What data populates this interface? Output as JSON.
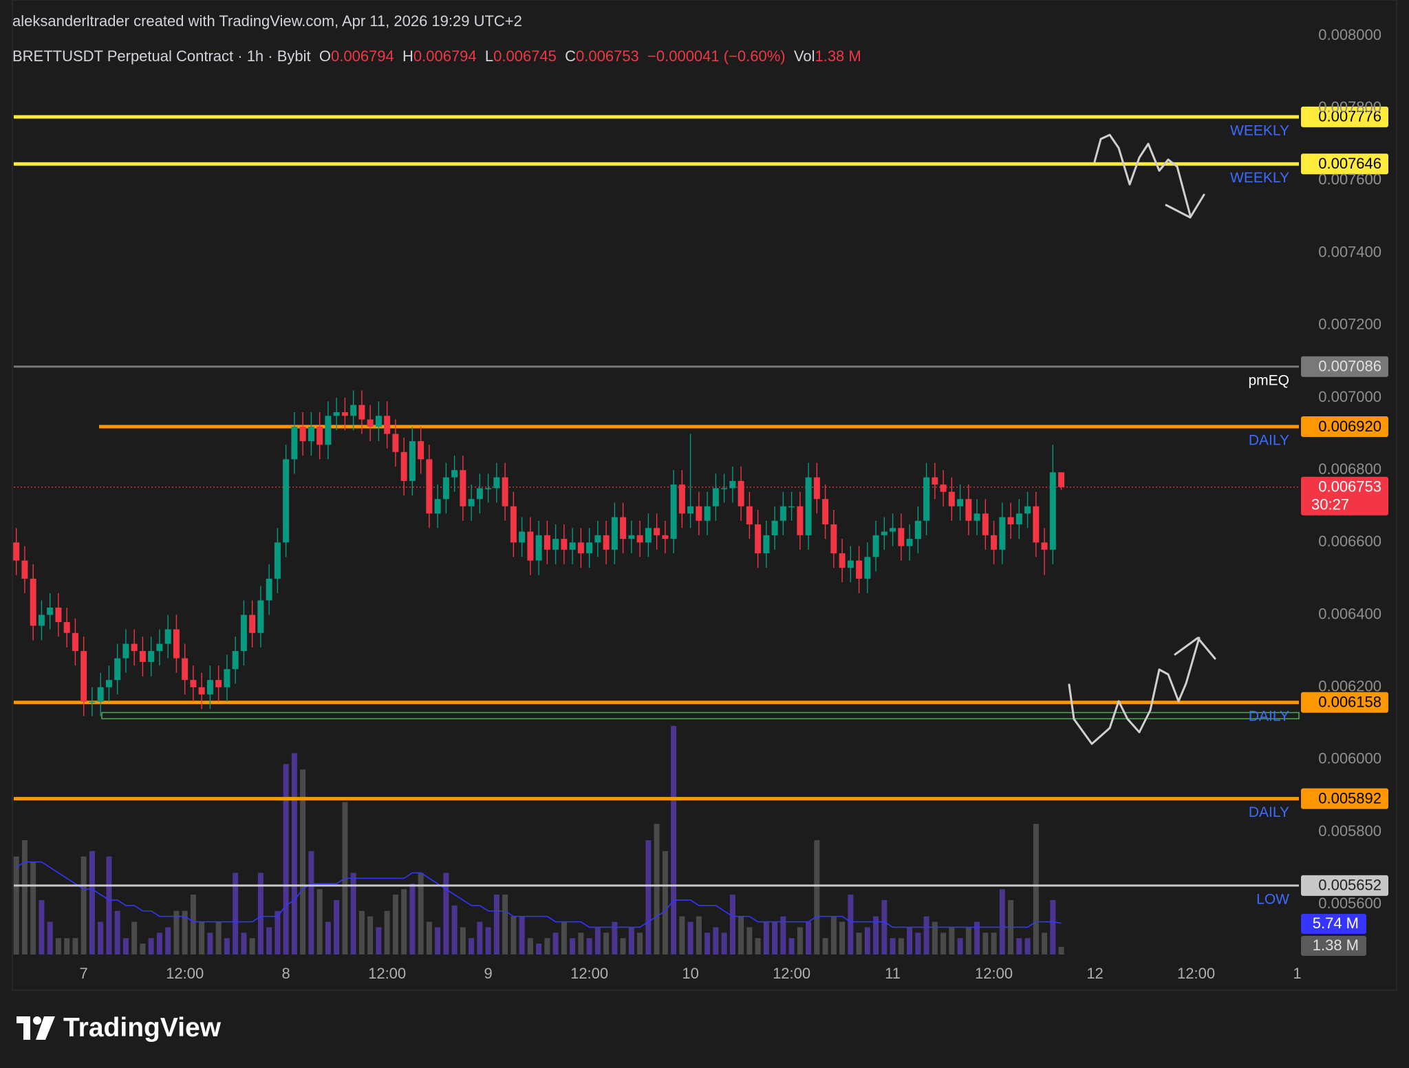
{
  "header": {
    "credit": "aleksanderltrader created with TradingView.com, Apr 11, 2026 19:29 UTC+2",
    "brand": "TradingView"
  },
  "chart_data": {
    "type": "candlestick",
    "title": "BRETTUSDT Perpetual Contract · 1h · Bybit",
    "legend_values": [
      {
        "key": "O",
        "value": "0.006794"
      },
      {
        "key": "H",
        "value": "0.006794"
      },
      {
        "key": "L",
        "value": "0.006745"
      },
      {
        "key": "C",
        "value": "0.006753"
      }
    ],
    "change": "−0.000041 (−0.60%)",
    "volume_key": "Vol",
    "volume_text": "1.38 M",
    "up_color": "#089981",
    "down_color": "#f23645",
    "volume_up_color": "#4b3590",
    "volume_down_color": "#4a4a4a",
    "volume_ma_color": "#3535ff",
    "xlim": [
      -0.3,
      152.2
    ],
    "xticks": [
      {
        "value": 8,
        "label": "7"
      },
      {
        "value": 20,
        "label": "12:00"
      },
      {
        "value": 32,
        "label": "8"
      },
      {
        "value": 44,
        "label": "12:00"
      },
      {
        "value": 56,
        "label": "9"
      },
      {
        "value": 68,
        "label": "12:00"
      },
      {
        "value": 80,
        "label": "10"
      },
      {
        "value": 92,
        "label": "12:00"
      },
      {
        "value": 104,
        "label": "11"
      },
      {
        "value": 116,
        "label": "12:00"
      },
      {
        "value": 128,
        "label": "12"
      },
      {
        "value": 140,
        "label": "12:00"
      },
      {
        "value": 152,
        "label": "1"
      }
    ],
    "ylim": [
      0.005454,
      0.008061
    ],
    "yticks": [
      {
        "value": 0.008,
        "label": "0.008000"
      },
      {
        "value": 0.0078,
        "label": "0.007800"
      },
      {
        "value": 0.0076,
        "label": "0.007600"
      },
      {
        "value": 0.0074,
        "label": "0.007400"
      },
      {
        "value": 0.0072,
        "label": "0.007200"
      },
      {
        "value": 0.007,
        "label": "0.007000"
      },
      {
        "value": 0.0068,
        "label": "0.006800"
      },
      {
        "value": 0.0066,
        "label": "0.006600"
      },
      {
        "value": 0.0064,
        "label": "0.006400"
      },
      {
        "value": 0.0062,
        "label": "0.006200"
      },
      {
        "value": 0.006,
        "label": "0.006000"
      },
      {
        "value": 0.0058,
        "label": "0.005800"
      },
      {
        "value": 0.0056,
        "label": "0.005600"
      }
    ],
    "ohlc": [
      [
        0.0066,
        0.00664,
        0.00651,
        0.00655
      ],
      [
        0.00655,
        0.00659,
        0.00646,
        0.0065
      ],
      [
        0.0065,
        0.00654,
        0.00633,
        0.00637
      ],
      [
        0.00637,
        0.00644,
        0.00633,
        0.0064
      ],
      [
        0.0064,
        0.00646,
        0.00636,
        0.00642
      ],
      [
        0.00642,
        0.00646,
        0.00634,
        0.00638
      ],
      [
        0.00638,
        0.00642,
        0.00631,
        0.00635
      ],
      [
        0.00635,
        0.00639,
        0.00626,
        0.0063
      ],
      [
        0.0063,
        0.00634,
        0.00612,
        0.00616
      ],
      [
        0.00616,
        0.0062,
        0.00612,
        0.00616
      ],
      [
        0.00616,
        0.00624,
        0.00612,
        0.0062
      ],
      [
        0.0062,
        0.00626,
        0.00616,
        0.00622
      ],
      [
        0.00622,
        0.00632,
        0.00618,
        0.00628
      ],
      [
        0.00628,
        0.00636,
        0.00624,
        0.00632
      ],
      [
        0.00632,
        0.00636,
        0.00626,
        0.0063
      ],
      [
        0.0063,
        0.00634,
        0.00623,
        0.00627
      ],
      [
        0.00627,
        0.00634,
        0.00623,
        0.0063
      ],
      [
        0.0063,
        0.00636,
        0.00626,
        0.00632
      ],
      [
        0.00632,
        0.0064,
        0.00628,
        0.00636
      ],
      [
        0.00636,
        0.0064,
        0.00624,
        0.00628
      ],
      [
        0.00628,
        0.00632,
        0.00618,
        0.00622
      ],
      [
        0.00622,
        0.00626,
        0.00616,
        0.0062
      ],
      [
        0.0062,
        0.00624,
        0.00614,
        0.00618
      ],
      [
        0.00618,
        0.00626,
        0.00614,
        0.00622
      ],
      [
        0.00622,
        0.00626,
        0.00616,
        0.0062
      ],
      [
        0.0062,
        0.00629,
        0.00616,
        0.00625
      ],
      [
        0.00625,
        0.00634,
        0.00621,
        0.0063
      ],
      [
        0.0063,
        0.00644,
        0.00626,
        0.0064
      ],
      [
        0.0064,
        0.00644,
        0.00631,
        0.00635
      ],
      [
        0.00635,
        0.00648,
        0.00631,
        0.00644
      ],
      [
        0.00644,
        0.00654,
        0.0064,
        0.0065
      ],
      [
        0.0065,
        0.00664,
        0.00646,
        0.0066
      ],
      [
        0.0066,
        0.00687,
        0.00656,
        0.00683
      ],
      [
        0.00683,
        0.00696,
        0.00679,
        0.00692
      ],
      [
        0.00692,
        0.00696,
        0.00684,
        0.00688
      ],
      [
        0.00688,
        0.00696,
        0.00684,
        0.00692
      ],
      [
        0.00692,
        0.00696,
        0.00683,
        0.00687
      ],
      [
        0.00687,
        0.00699,
        0.00683,
        0.00695
      ],
      [
        0.00695,
        0.007,
        0.00691,
        0.00696
      ],
      [
        0.00696,
        0.007,
        0.00691,
        0.00695
      ],
      [
        0.00695,
        0.00702,
        0.00691,
        0.00698
      ],
      [
        0.00698,
        0.00702,
        0.0069,
        0.00694
      ],
      [
        0.00694,
        0.00698,
        0.00688,
        0.00692
      ],
      [
        0.00692,
        0.00699,
        0.00688,
        0.00695
      ],
      [
        0.00695,
        0.00699,
        0.00686,
        0.0069
      ],
      [
        0.0069,
        0.00694,
        0.00681,
        0.00685
      ],
      [
        0.00685,
        0.00689,
        0.00673,
        0.00677
      ],
      [
        0.00677,
        0.00692,
        0.00673,
        0.00688
      ],
      [
        0.00688,
        0.00692,
        0.00679,
        0.00683
      ],
      [
        0.00683,
        0.00687,
        0.00664,
        0.00668
      ],
      [
        0.00668,
        0.00676,
        0.00664,
        0.00672
      ],
      [
        0.00672,
        0.00682,
        0.00668,
        0.00678
      ],
      [
        0.00678,
        0.00684,
        0.00674,
        0.0068
      ],
      [
        0.0068,
        0.00684,
        0.00666,
        0.0067
      ],
      [
        0.0067,
        0.00676,
        0.00666,
        0.00672
      ],
      [
        0.00672,
        0.00679,
        0.00668,
        0.00675
      ],
      [
        0.00675,
        0.00679,
        0.00671,
        0.00675
      ],
      [
        0.00675,
        0.00682,
        0.00671,
        0.00678
      ],
      [
        0.00678,
        0.00682,
        0.00666,
        0.0067
      ],
      [
        0.0067,
        0.00674,
        0.00656,
        0.0066
      ],
      [
        0.0066,
        0.00667,
        0.00656,
        0.00663
      ],
      [
        0.00663,
        0.00667,
        0.00651,
        0.00655
      ],
      [
        0.00655,
        0.00666,
        0.00651,
        0.00662
      ],
      [
        0.00662,
        0.00666,
        0.00654,
        0.00658
      ],
      [
        0.00658,
        0.00665,
        0.00654,
        0.00661
      ],
      [
        0.00661,
        0.00665,
        0.00654,
        0.00658
      ],
      [
        0.00658,
        0.00664,
        0.00654,
        0.0066
      ],
      [
        0.0066,
        0.00664,
        0.00653,
        0.00657
      ],
      [
        0.00657,
        0.00664,
        0.00653,
        0.0066
      ],
      [
        0.0066,
        0.00666,
        0.00656,
        0.00662
      ],
      [
        0.00662,
        0.00666,
        0.00654,
        0.00658
      ],
      [
        0.00658,
        0.00671,
        0.00654,
        0.00667
      ],
      [
        0.00667,
        0.00671,
        0.00657,
        0.00661
      ],
      [
        0.00661,
        0.00666,
        0.00657,
        0.00662
      ],
      [
        0.00662,
        0.00666,
        0.00656,
        0.0066
      ],
      [
        0.0066,
        0.00668,
        0.00656,
        0.00664
      ],
      [
        0.00664,
        0.00668,
        0.00658,
        0.00662
      ],
      [
        0.00662,
        0.00666,
        0.00657,
        0.00661
      ],
      [
        0.00661,
        0.0068,
        0.00657,
        0.00676
      ],
      [
        0.00676,
        0.0068,
        0.00664,
        0.00668
      ],
      [
        0.00668,
        0.0069,
        0.00664,
        0.0067
      ],
      [
        0.0067,
        0.00674,
        0.00662,
        0.00666
      ],
      [
        0.00666,
        0.00674,
        0.00662,
        0.0067
      ],
      [
        0.0067,
        0.00679,
        0.00666,
        0.00675
      ],
      [
        0.00675,
        0.00679,
        0.00671,
        0.00675
      ],
      [
        0.00675,
        0.00681,
        0.00671,
        0.00677
      ],
      [
        0.00677,
        0.00681,
        0.00666,
        0.0067
      ],
      [
        0.0067,
        0.00674,
        0.00661,
        0.00665
      ],
      [
        0.00665,
        0.00669,
        0.00653,
        0.00657
      ],
      [
        0.00657,
        0.00666,
        0.00653,
        0.00662
      ],
      [
        0.00662,
        0.0067,
        0.00658,
        0.00666
      ],
      [
        0.00666,
        0.00674,
        0.00662,
        0.0067
      ],
      [
        0.0067,
        0.00674,
        0.00666,
        0.0067
      ],
      [
        0.0067,
        0.00674,
        0.00658,
        0.00662
      ],
      [
        0.00662,
        0.00682,
        0.00658,
        0.00678
      ],
      [
        0.00678,
        0.00682,
        0.00668,
        0.00672
      ],
      [
        0.00672,
        0.00676,
        0.00661,
        0.00665
      ],
      [
        0.00665,
        0.00669,
        0.00653,
        0.00657
      ],
      [
        0.00657,
        0.00661,
        0.00649,
        0.00653
      ],
      [
        0.00653,
        0.00659,
        0.00649,
        0.00655
      ],
      [
        0.00655,
        0.00659,
        0.00646,
        0.0065
      ],
      [
        0.0065,
        0.0066,
        0.00646,
        0.00656
      ],
      [
        0.00656,
        0.00666,
        0.00652,
        0.00662
      ],
      [
        0.00662,
        0.00667,
        0.00658,
        0.00663
      ],
      [
        0.00663,
        0.00668,
        0.00659,
        0.00664
      ],
      [
        0.00664,
        0.00668,
        0.00655,
        0.00659
      ],
      [
        0.00659,
        0.00665,
        0.00655,
        0.00661
      ],
      [
        0.00661,
        0.0067,
        0.00657,
        0.00666
      ],
      [
        0.00666,
        0.00682,
        0.00662,
        0.00678
      ],
      [
        0.00678,
        0.00682,
        0.00672,
        0.00676
      ],
      [
        0.00676,
        0.0068,
        0.0067,
        0.00674
      ],
      [
        0.00674,
        0.00678,
        0.00666,
        0.0067
      ],
      [
        0.0067,
        0.00676,
        0.00666,
        0.00672
      ],
      [
        0.00672,
        0.00676,
        0.00662,
        0.00666
      ],
      [
        0.00666,
        0.00672,
        0.00662,
        0.00668
      ],
      [
        0.00668,
        0.00672,
        0.00658,
        0.00662
      ],
      [
        0.00662,
        0.00666,
        0.00654,
        0.00658
      ],
      [
        0.00658,
        0.00671,
        0.00654,
        0.00667
      ],
      [
        0.00667,
        0.00671,
        0.00661,
        0.00665
      ],
      [
        0.00665,
        0.00672,
        0.00661,
        0.00668
      ],
      [
        0.00668,
        0.00674,
        0.00664,
        0.0067
      ],
      [
        0.0067,
        0.00674,
        0.00656,
        0.0066
      ],
      [
        0.0066,
        0.00664,
        0.00651,
        0.00658
      ],
      [
        0.00658,
        0.00687,
        0.00654,
        0.006794
      ],
      [
        0.006794,
        0.006794,
        0.006745,
        0.006753
      ]
    ],
    "volume": [
      18,
      21,
      17,
      10,
      6,
      3,
      3,
      3,
      18,
      19,
      6,
      18,
      8,
      3,
      6,
      2,
      3,
      4,
      5,
      8,
      8,
      11,
      6,
      4,
      6,
      3,
      15,
      4,
      3,
      15,
      5,
      8,
      35,
      37,
      34,
      19,
      12,
      6,
      10,
      28,
      15,
      8,
      7,
      5,
      8,
      11,
      12,
      13,
      15,
      6,
      5,
      15,
      9,
      5,
      3,
      6,
      5,
      11,
      11,
      7,
      7,
      3,
      2,
      3,
      4,
      6,
      3,
      4,
      3,
      5,
      4,
      6,
      3,
      5,
      4,
      21,
      24,
      19,
      42,
      7,
      6,
      7,
      4,
      5,
      4,
      11,
      7,
      5,
      3,
      6,
      6,
      7,
      3,
      5,
      6,
      21,
      3,
      7,
      6,
      11,
      4,
      5,
      7,
      10,
      3,
      3,
      5,
      4,
      7,
      6,
      4,
      5,
      3,
      5,
      6,
      4,
      4,
      12,
      10,
      3,
      3,
      24,
      4,
      10,
      1.38
    ],
    "volume_ma": [
      16,
      17,
      17,
      17,
      16,
      15,
      14,
      13,
      12,
      12,
      11,
      10,
      10,
      9,
      9,
      8,
      8,
      7,
      7,
      7,
      7,
      6,
      6,
      6,
      6,
      6,
      6,
      6,
      6,
      7,
      7,
      7,
      9,
      10,
      12,
      13,
      13,
      13,
      13,
      14,
      14,
      14,
      14,
      14,
      14,
      14,
      14,
      15,
      15,
      14,
      13,
      12,
      11,
      10,
      9,
      9,
      8,
      8,
      8,
      7,
      7,
      7,
      7,
      7,
      6,
      6,
      6,
      6,
      5,
      5,
      5,
      5,
      5,
      5,
      5,
      6,
      7,
      8,
      10,
      10,
      10,
      9,
      9,
      9,
      8,
      7,
      7,
      7,
      6,
      6,
      6,
      6,
      6,
      6,
      6,
      7,
      7,
      7,
      7,
      6,
      6,
      6,
      6,
      6,
      5,
      5,
      5,
      5,
      5,
      5,
      5,
      5,
      5,
      5,
      5,
      5,
      5,
      5,
      5,
      5,
      5,
      6,
      6,
      6,
      5.74
    ],
    "volume_ylim": [
      0,
      43
    ],
    "volume_label": "1.38 M",
    "volume_ma_label": "5.74 M",
    "levels": [
      {
        "value": 0.007776,
        "tag": "0.007776",
        "name": "WEEKLY",
        "color": "#ffeb3b",
        "tag_text_color": "#000000",
        "name_color": "#3d6bff"
      },
      {
        "value": 0.007646,
        "tag": "0.007646",
        "name": "WEEKLY",
        "color": "#ffeb3b",
        "tag_text_color": "#000000",
        "name_color": "#3d6bff"
      },
      {
        "value": 0.007086,
        "tag": "0.007086",
        "name": "pmEQ",
        "color": "#787878",
        "tag_text_color": "#e0e0e0",
        "name_color": "#ffffff"
      },
      {
        "value": 0.00692,
        "tag": "0.006920",
        "name": "DAILY",
        "color": "#ff9800",
        "tag_text_color": "#000000",
        "name_color": "#3d6bff"
      },
      {
        "value": 0.006158,
        "tag": "0.006158",
        "name": "DAILY",
        "color": "#ff9800",
        "tag_text_color": "#000000",
        "name_color": "#3d6bff"
      },
      {
        "value": 0.005892,
        "tag": "0.005892",
        "name": "DAILY",
        "color": "#ff9800",
        "tag_text_color": "#000000",
        "name_color": "#3d6bff"
      },
      {
        "value": 0.005652,
        "tag": "0.005652",
        "name": "LOW",
        "color": "#c8c8c8",
        "tag_text_color": "#222222",
        "name_color": "#3d6bff"
      }
    ],
    "zone": {
      "top": 0.00613,
      "bottom": 0.006113,
      "color": "#4caf50"
    },
    "last_price": {
      "value": 0.006753,
      "tag": "0.006753",
      "countdown": "30:27",
      "color": "#f23645"
    }
  }
}
